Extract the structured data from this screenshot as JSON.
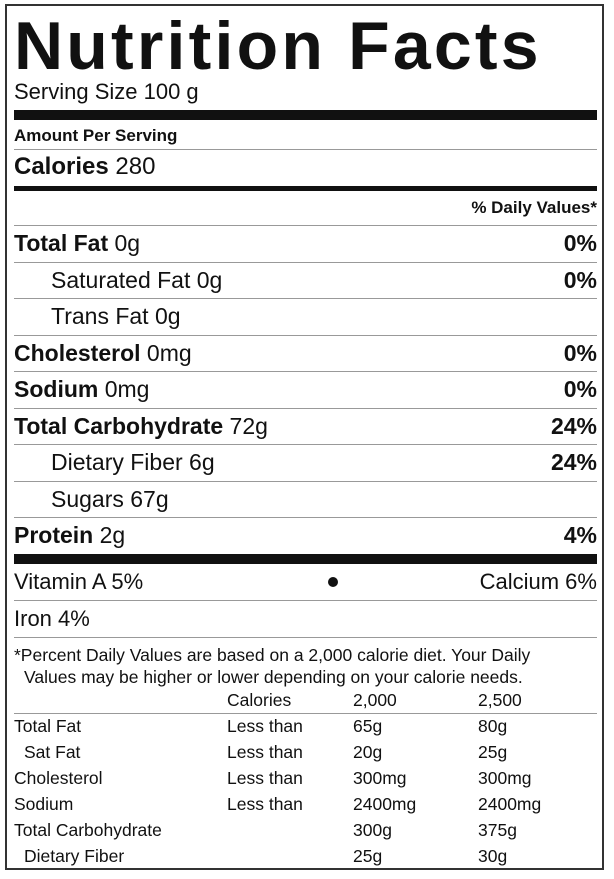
{
  "title": "Nutrition Facts",
  "serving_size": "Serving Size 100 g",
  "amount_per_serving": "Amount Per Serving",
  "calories": {
    "label": "Calories",
    "value": "280"
  },
  "daily_values_header": "% Daily Values*",
  "nutrients": [
    {
      "label": "Total Fat",
      "amount": "0g",
      "dv": "0%",
      "bold": true
    },
    {
      "label": "Saturated Fat",
      "amount": "0g",
      "dv": "0%",
      "bold": false
    },
    {
      "label": "Trans Fat",
      "amount": "0g",
      "dv": "",
      "bold": false
    },
    {
      "label": "Cholesterol",
      "amount": "0mg",
      "dv": "0%",
      "bold": true
    },
    {
      "label": "Sodium",
      "amount": "0mg",
      "dv": "0%",
      "bold": true
    },
    {
      "label": "Total Carbohydrate",
      "amount": "72g",
      "dv": "24%",
      "bold": true
    },
    {
      "label": "Dietary Fiber",
      "amount": "6g",
      "dv": "24%",
      "bold": false
    },
    {
      "label": "Sugars",
      "amount": "67g",
      "dv": "",
      "bold": false
    },
    {
      "label": "Protein",
      "amount": "2g",
      "dv": "4%",
      "bold": true
    }
  ],
  "vitamins": {
    "vitamin_a": "Vitamin A 5%",
    "calcium": "Calcium 6%",
    "iron": "Iron 4%"
  },
  "footnote": {
    "line1": "*Percent Daily Values are based on a 2,000 calorie diet. Your Daily",
    "line2": "Values may be higher or lower depending on your calorie needs."
  },
  "reference_table": {
    "header": [
      "",
      "Calories",
      "2,000",
      "2,500"
    ],
    "rows": [
      [
        "Total Fat",
        "Less than",
        "65g",
        "80g"
      ],
      [
        "Sat Fat",
        "Less than",
        "20g",
        "25g"
      ],
      [
        "Cholesterol",
        "Less than",
        "300mg",
        "300mg"
      ],
      [
        "Sodium",
        "Less than",
        "2400mg",
        "2400mg"
      ],
      [
        "Total Carbohydrate",
        "",
        "300g",
        "375g"
      ],
      [
        "Dietary Fiber",
        "",
        "25g",
        "30g"
      ]
    ]
  }
}
